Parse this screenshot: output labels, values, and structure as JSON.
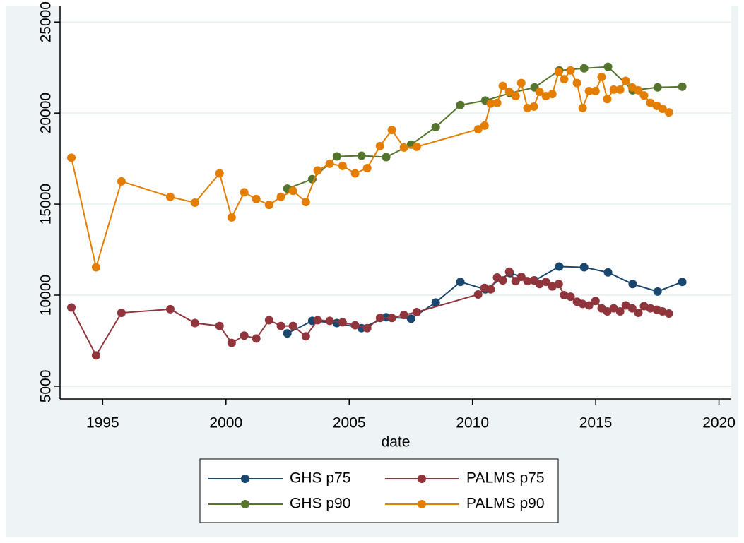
{
  "chart_data": {
    "type": "line",
    "x_label": "date",
    "xlim": [
      1993.27,
      2020.5
    ],
    "ylim": [
      4300,
      25900
    ],
    "xticks": [
      1995,
      2000,
      2005,
      2010,
      2015,
      2020
    ],
    "yticks": [
      5000,
      10000,
      15000,
      20000,
      25000
    ],
    "grid": true,
    "legend": "bottom",
    "series": [
      {
        "name": "GHS p75",
        "color": "#1a476f",
        "x": [
          2002.49,
          2003.5,
          2004.5,
          2005.5,
          2006.5,
          2007.51,
          2008.51,
          2009.51,
          2010.52,
          2011.52,
          2012.52,
          2013.52,
          2014.53,
          2015.5,
          2016.5,
          2017.51,
          2018.51
        ],
        "values": [
          7900,
          8590,
          8470,
          8190,
          8790,
          8710,
          9600,
          10730,
          10320,
          11210,
          10810,
          11570,
          11530,
          11250,
          10610,
          10200,
          10730
        ]
      },
      {
        "name": "PALMS p75",
        "color": "#90353b",
        "x": [
          1993.73,
          1994.73,
          1995.76,
          1997.74,
          1998.74,
          1999.74,
          2000.23,
          2000.74,
          2001.23,
          2001.75,
          2002.23,
          2002.72,
          2003.24,
          2003.72,
          2004.21,
          2004.73,
          2005.24,
          2005.73,
          2006.25,
          2006.73,
          2007.22,
          2007.74,
          2010.23,
          2010.49,
          2010.74,
          2011.0,
          2011.23,
          2011.49,
          2011.75,
          2011.98,
          2012.23,
          2012.49,
          2012.72,
          2012.98,
          2013.24,
          2013.5,
          2013.72,
          2013.98,
          2014.24,
          2014.47,
          2014.73,
          2014.99,
          2015.24,
          2015.47,
          2015.73,
          2015.99,
          2016.22,
          2016.48,
          2016.73,
          2016.96,
          2017.22,
          2017.48,
          2017.71,
          2017.97
        ],
        "values": [
          9320,
          6690,
          9030,
          9230,
          8470,
          8310,
          7380,
          7780,
          7620,
          8630,
          8310,
          8310,
          7740,
          8630,
          8590,
          8510,
          8350,
          8190,
          8750,
          8750,
          8910,
          9070,
          10040,
          10400,
          10320,
          10970,
          10810,
          11290,
          10770,
          11010,
          10770,
          10810,
          10610,
          10730,
          10480,
          10610,
          10000,
          9920,
          9640,
          9520,
          9440,
          9680,
          9280,
          9110,
          9280,
          9110,
          9440,
          9280,
          9030,
          9400,
          9280,
          9200,
          9110,
          8990
        ]
      },
      {
        "name": "GHS p90",
        "color": "#55752f",
        "x": [
          2002.49,
          2003.5,
          2004.5,
          2005.5,
          2006.5,
          2007.51,
          2008.51,
          2009.51,
          2010.52,
          2011.52,
          2012.52,
          2013.52,
          2014.53,
          2015.5,
          2016.5,
          2017.51,
          2018.51
        ],
        "values": [
          15850,
          16370,
          17620,
          17660,
          17580,
          18270,
          19230,
          20440,
          20690,
          21090,
          21410,
          22340,
          22460,
          22540,
          21250,
          21410,
          21450
        ]
      },
      {
        "name": "PALMS p90",
        "color": "#e37e00",
        "x": [
          1993.73,
          1994.73,
          1995.76,
          1997.74,
          1998.74,
          1999.74,
          2000.23,
          2000.74,
          2001.23,
          2001.75,
          2002.23,
          2002.72,
          2003.24,
          2003.72,
          2004.21,
          2004.73,
          2005.24,
          2005.73,
          2006.25,
          2006.73,
          2007.22,
          2007.74,
          2010.23,
          2010.49,
          2010.74,
          2011.0,
          2011.23,
          2011.49,
          2011.75,
          2011.98,
          2012.23,
          2012.49,
          2012.72,
          2012.98,
          2013.24,
          2013.5,
          2013.72,
          2013.98,
          2014.24,
          2014.47,
          2014.73,
          2014.99,
          2015.24,
          2015.47,
          2015.73,
          2015.99,
          2016.22,
          2016.48,
          2016.73,
          2016.96,
          2017.22,
          2017.48,
          2017.71,
          2017.97
        ],
        "values": [
          17550,
          11530,
          16250,
          15400,
          15080,
          16690,
          14270,
          15650,
          15280,
          14960,
          15400,
          15730,
          15120,
          16850,
          17220,
          17100,
          16690,
          16980,
          18190,
          19070,
          18110,
          18150,
          19110,
          19310,
          20520,
          20560,
          21490,
          21170,
          20930,
          21650,
          20280,
          20360,
          21170,
          20930,
          21050,
          22260,
          21860,
          22340,
          21650,
          20280,
          21210,
          21210,
          21980,
          20770,
          21290,
          21290,
          21770,
          21410,
          21250,
          20970,
          20560,
          20400,
          20240,
          20040
        ]
      }
    ]
  }
}
